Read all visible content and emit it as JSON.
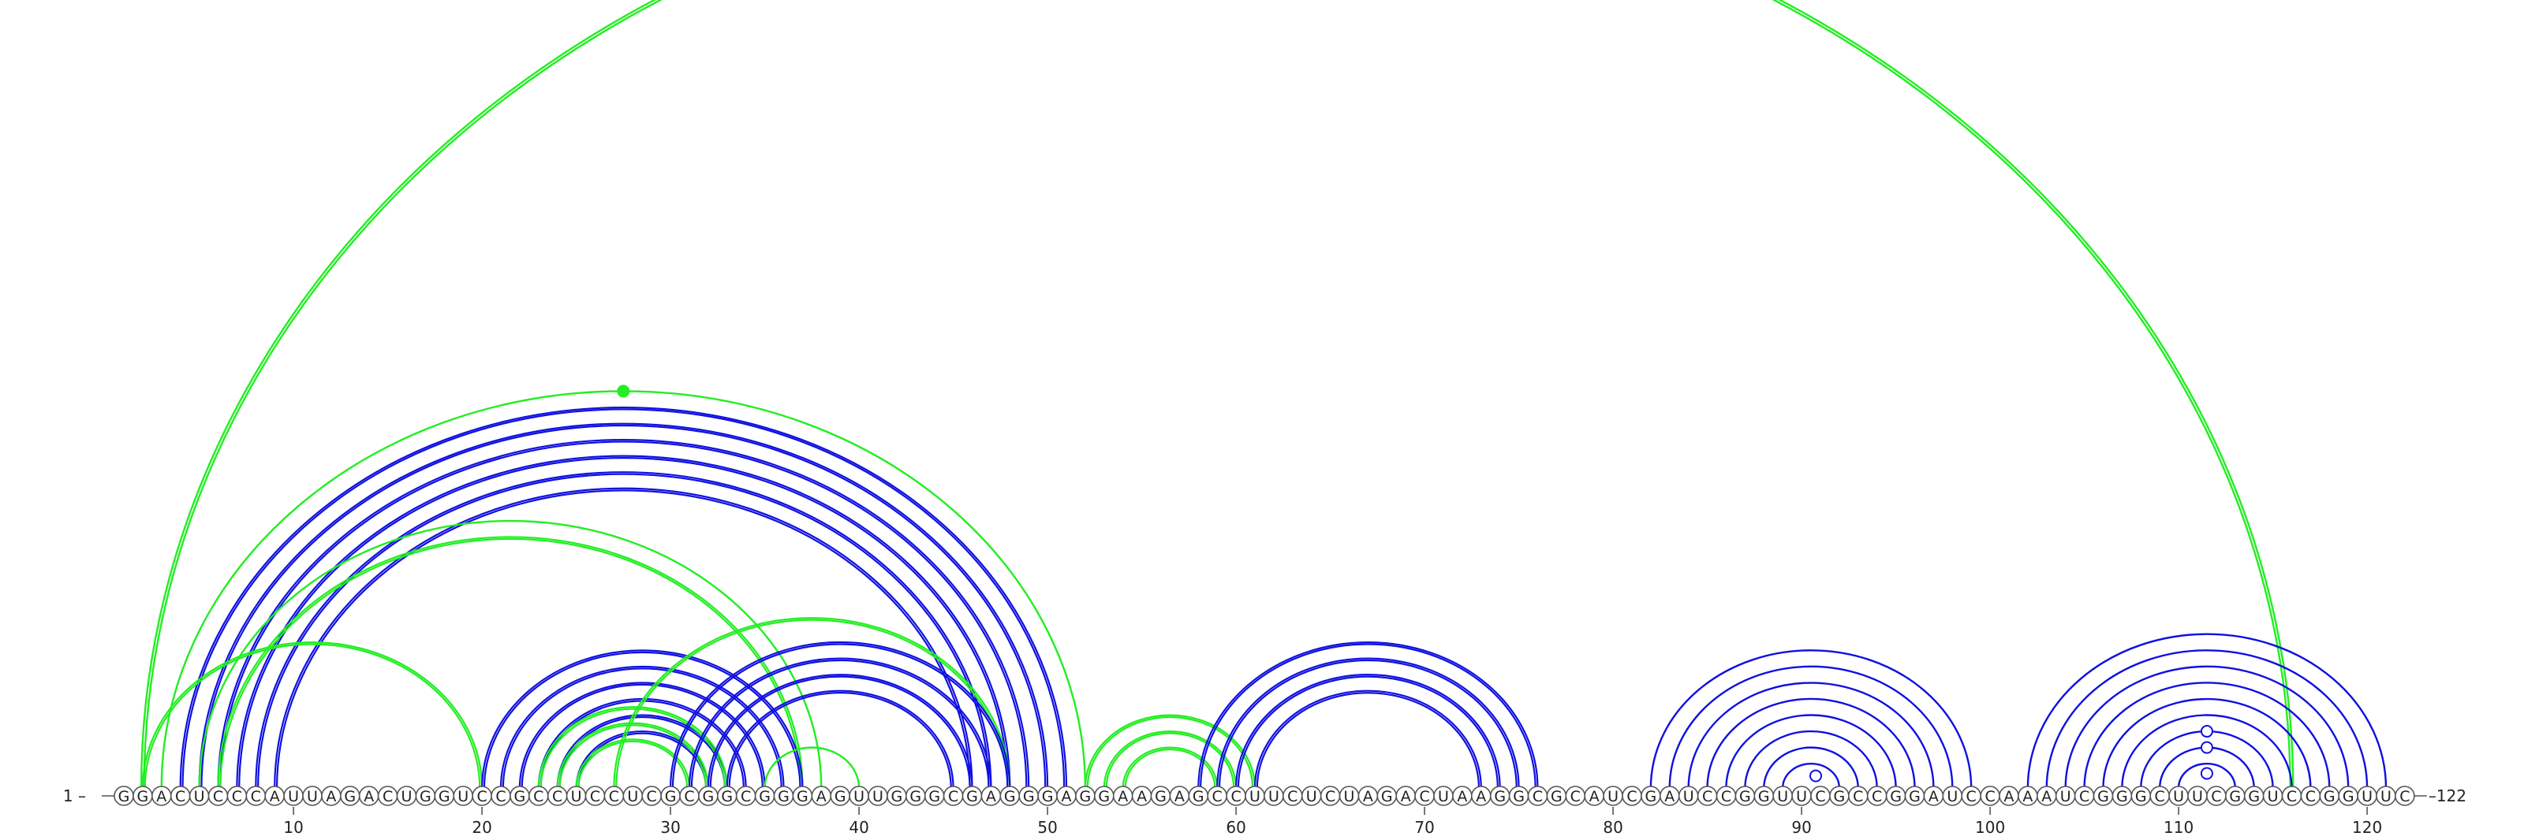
{
  "sequence": "GGACUCCCAUUAGACUGGUCCGCCUCCUCGCGGCGGGAGUUGGGCGAGGGAGGAAGAGCCUUCUCUAGACUAAGGCGCAUCGAUCCGGUUCGCCGGAUCCAAAUCGGGCUUCGGUCCGGUUC",
  "start_label": "1",
  "end_label": "122",
  "ticks": [
    10,
    20,
    30,
    40,
    50,
    60,
    70,
    80,
    90,
    100,
    110,
    120
  ],
  "colors": {
    "blue": "#1010e0",
    "green": "#22ee22"
  },
  "helices": [
    {
      "name": "helix-long-range",
      "color": "green",
      "from": 2,
      "to": 116,
      "count": 1,
      "style": "thick"
    },
    {
      "name": "helix-green-outer",
      "color": "green",
      "from": 3,
      "to": 52,
      "count": 1,
      "style": "thin"
    },
    {
      "name": "helix-blue-main",
      "color": "blue",
      "from": 4,
      "to": 51,
      "count": 6,
      "style": "double"
    },
    {
      "name": "helix-green-mid",
      "color": "green",
      "from": 5,
      "to": 38,
      "count": 1,
      "style": "thin"
    },
    {
      "name": "helix-green-mid-2",
      "color": "green",
      "from": 6,
      "to": 37,
      "count": 1,
      "style": "double"
    },
    {
      "name": "helix-green-hairpin-1",
      "color": "green",
      "from": 2,
      "to": 20,
      "count": 1,
      "style": "double"
    },
    {
      "name": "helix-blue-bulge",
      "color": "blue",
      "from": 20,
      "to": 37,
      "count": 6,
      "style": "double"
    },
    {
      "name": "helix-green-inner",
      "color": "green",
      "from": 23,
      "to": 33,
      "count": 3,
      "style": "double"
    },
    {
      "name": "helix-green-cross",
      "color": "green",
      "from": 27,
      "to": 48,
      "count": 1,
      "style": "double"
    },
    {
      "name": "helix-blue-upper",
      "color": "blue",
      "from": 30,
      "to": 48,
      "count": 4,
      "style": "double"
    },
    {
      "name": "helix-green-right",
      "color": "green",
      "from": 35,
      "to": 40,
      "count": 1,
      "style": "thin"
    },
    {
      "name": "helix-green-small",
      "color": "green",
      "from": 52,
      "to": 61,
      "count": 3,
      "style": "double"
    },
    {
      "name": "helix-blue-60s",
      "color": "blue",
      "from": 58,
      "to": 76,
      "count": 4,
      "style": "double"
    },
    {
      "name": "helix-blue-90s",
      "color": "blue",
      "from": 82,
      "to": 99,
      "count": 8,
      "style": "single"
    },
    {
      "name": "helix-blue-110s",
      "color": "blue",
      "from": 102,
      "to": 121,
      "count": 10,
      "style": "single"
    }
  ]
}
